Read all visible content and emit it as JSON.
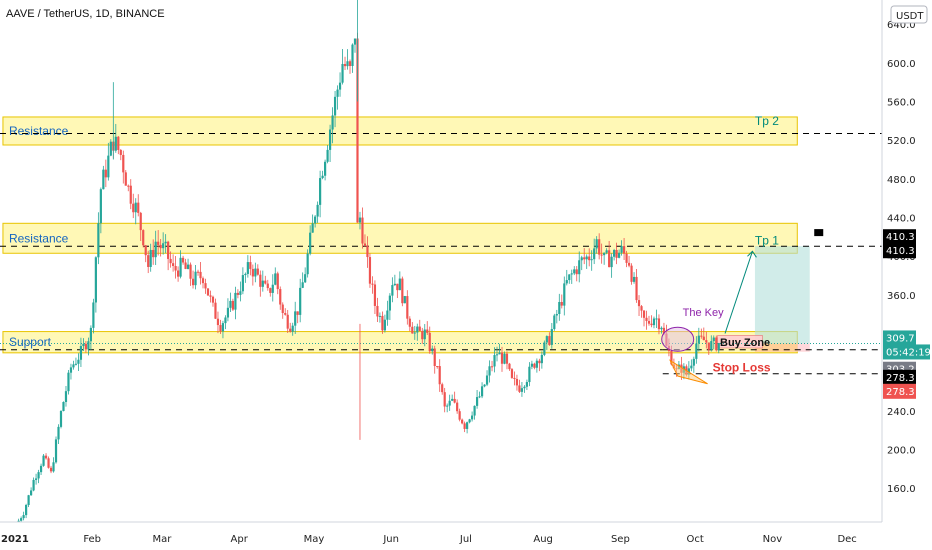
{
  "chart_data": {
    "type": "candlestick",
    "title": "AAVE / TetherUS, 1D, BINANCE",
    "currency": "USDT",
    "ylim": [
      125,
      665
    ],
    "yticks": [
      160,
      200,
      240,
      280,
      320,
      360,
      400,
      440,
      480,
      520,
      560,
      600,
      640
    ],
    "ytick_labels": [
      "160.0",
      "200.0",
      "240.0",
      "280.0",
      "320.0",
      "360.0",
      "400.0",
      "440.0",
      "480.0",
      "520.0",
      "560.0",
      "600.0",
      "640.0"
    ],
    "xlim": [
      "2020-12-26",
      "2021-12-15"
    ],
    "xticks": [
      {
        "date": "2021-01-01",
        "label": "2021"
      },
      {
        "date": "2021-02-01",
        "label": "Feb"
      },
      {
        "date": "2021-03-01",
        "label": "Mar"
      },
      {
        "date": "2021-04-01",
        "label": "Apr"
      },
      {
        "date": "2021-05-01",
        "label": "May"
      },
      {
        "date": "2021-06-01",
        "label": "Jun"
      },
      {
        "date": "2021-07-01",
        "label": "Jul"
      },
      {
        "date": "2021-08-01",
        "label": "Aug"
      },
      {
        "date": "2021-09-01",
        "label": "Sep"
      },
      {
        "date": "2021-10-01",
        "label": "Oct"
      },
      {
        "date": "2021-11-01",
        "label": "Nov"
      },
      {
        "date": "2021-12-01",
        "label": "Dec"
      }
    ],
    "price_path": [
      [
        "2021-01-02",
        122
      ],
      [
        "2021-01-05",
        135
      ],
      [
        "2021-01-09",
        168
      ],
      [
        "2021-01-13",
        192
      ],
      [
        "2021-01-16",
        175
      ],
      [
        "2021-01-20",
        238
      ],
      [
        "2021-01-24",
        285
      ],
      [
        "2021-01-28",
        300
      ],
      [
        "2021-02-01",
        322
      ],
      [
        "2021-02-03",
        400
      ],
      [
        "2021-02-05",
        470
      ],
      [
        "2021-02-08",
        500
      ],
      [
        "2021-02-10",
        520
      ],
      [
        "2021-02-13",
        505
      ],
      [
        "2021-02-16",
        470
      ],
      [
        "2021-02-19",
        450
      ],
      [
        "2021-02-22",
        420
      ],
      [
        "2021-02-24",
        390
      ],
      [
        "2021-02-27",
        415
      ],
      [
        "2021-03-03",
        405
      ],
      [
        "2021-03-06",
        385
      ],
      [
        "2021-03-10",
        390
      ],
      [
        "2021-03-14",
        375
      ],
      [
        "2021-03-18",
        380
      ],
      [
        "2021-03-22",
        345
      ],
      [
        "2021-03-25",
        330
      ],
      [
        "2021-03-28",
        340
      ],
      [
        "2021-04-02",
        370
      ],
      [
        "2021-04-06",
        390
      ],
      [
        "2021-04-10",
        375
      ],
      [
        "2021-04-13",
        360
      ],
      [
        "2021-04-16",
        380
      ],
      [
        "2021-04-19",
        340
      ],
      [
        "2021-04-22",
        330
      ],
      [
        "2021-04-25",
        345
      ],
      [
        "2021-04-28",
        385
      ],
      [
        "2021-05-01",
        430
      ],
      [
        "2021-05-04",
        480
      ],
      [
        "2021-05-07",
        520
      ],
      [
        "2021-05-10",
        560
      ],
      [
        "2021-05-13",
        600
      ],
      [
        "2021-05-16",
        590
      ],
      [
        "2021-05-18",
        632
      ],
      [
        "2021-05-19",
        430
      ],
      [
        "2021-05-20",
        440
      ],
      [
        "2021-05-23",
        390
      ],
      [
        "2021-05-26",
        350
      ],
      [
        "2021-05-29",
        330
      ],
      [
        "2021-06-02",
        375
      ],
      [
        "2021-06-05",
        370
      ],
      [
        "2021-06-08",
        340
      ],
      [
        "2021-06-11",
        320
      ],
      [
        "2021-06-15",
        320
      ],
      [
        "2021-06-18",
        300
      ],
      [
        "2021-06-21",
        270
      ],
      [
        "2021-06-23",
        242
      ],
      [
        "2021-06-26",
        250
      ],
      [
        "2021-06-29",
        235
      ],
      [
        "2021-07-01",
        225
      ],
      [
        "2021-07-05",
        245
      ],
      [
        "2021-07-08",
        260
      ],
      [
        "2021-07-11",
        282
      ],
      [
        "2021-07-14",
        300
      ],
      [
        "2021-07-17",
        292
      ],
      [
        "2021-07-20",
        270
      ],
      [
        "2021-07-23",
        265
      ],
      [
        "2021-07-26",
        275
      ],
      [
        "2021-07-29",
        290
      ],
      [
        "2021-08-01",
        300
      ],
      [
        "2021-08-04",
        315
      ],
      [
        "2021-08-07",
        340
      ],
      [
        "2021-08-11",
        372
      ],
      [
        "2021-08-14",
        385
      ],
      [
        "2021-08-17",
        395
      ],
      [
        "2021-08-20",
        400
      ],
      [
        "2021-08-23",
        415
      ],
      [
        "2021-08-26",
        395
      ],
      [
        "2021-08-29",
        400
      ],
      [
        "2021-09-02",
        405
      ],
      [
        "2021-09-05",
        395
      ],
      [
        "2021-09-07",
        370
      ],
      [
        "2021-09-09",
        340
      ],
      [
        "2021-09-12",
        330
      ],
      [
        "2021-09-15",
        338
      ],
      [
        "2021-09-18",
        330
      ],
      [
        "2021-09-20",
        305
      ],
      [
        "2021-09-22",
        295
      ],
      [
        "2021-09-24",
        280
      ],
      [
        "2021-09-26",
        285
      ],
      [
        "2021-09-28",
        278
      ],
      [
        "2021-09-30",
        292
      ],
      [
        "2021-10-02",
        310
      ],
      [
        "2021-10-05",
        313
      ],
      [
        "2021-10-08",
        308
      ],
      [
        "2021-10-11",
        310
      ]
    ],
    "levels": [
      {
        "label": "526.9",
        "value": 526.9
      },
      {
        "label": "410.3",
        "value": 410.3
      },
      {
        "label": "303.2",
        "value": 303.2
      },
      {
        "label": "278.3",
        "value": 278.3
      }
    ],
    "zones": [
      {
        "label": "Resistance",
        "low": 515,
        "high": 544
      },
      {
        "label": "Resistance",
        "low": 403,
        "high": 434
      },
      {
        "label": "Support",
        "low": 300,
        "high": 322
      }
    ],
    "annotations": {
      "tp2": "Tp 2",
      "tp1": "Tp 1",
      "the_key": "The Key",
      "buy_zone": "Buy Zone",
      "stop_loss": "Stop Loss"
    },
    "last_price": {
      "value": "309.7",
      "countdown": "05:42:19"
    },
    "price_tags": [
      {
        "text": "410.3",
        "value": 410.3,
        "bg": "#000000"
      },
      {
        "text": "410.3",
        "value": 410.3,
        "bg": "#000000"
      },
      {
        "text": "309.7",
        "value": 309.7,
        "bg": "#26a69a"
      },
      {
        "text": "05:42:19",
        "value": 309.7,
        "bg": "#26a69a"
      },
      {
        "text": "303.2",
        "value": 303.2,
        "bg": "#787b86"
      },
      {
        "text": "278.3",
        "value": 278.3,
        "bg": "#000000"
      },
      {
        "text": "278.3",
        "value": 278.3,
        "bg": "#ef5350"
      }
    ],
    "colors": {
      "up": "#26a69a",
      "down": "#ef5350",
      "zone_fill": "#fff59d",
      "zone_border": "#e8c400",
      "zone_text": "#1565c0",
      "tp_text": "#00897b",
      "key_text": "#8e24aa",
      "stop_text": "#e53935",
      "target_box": "#b2dfdb",
      "stop_box": "#ffcdd2",
      "buy_box": "#ffcdd2"
    }
  }
}
